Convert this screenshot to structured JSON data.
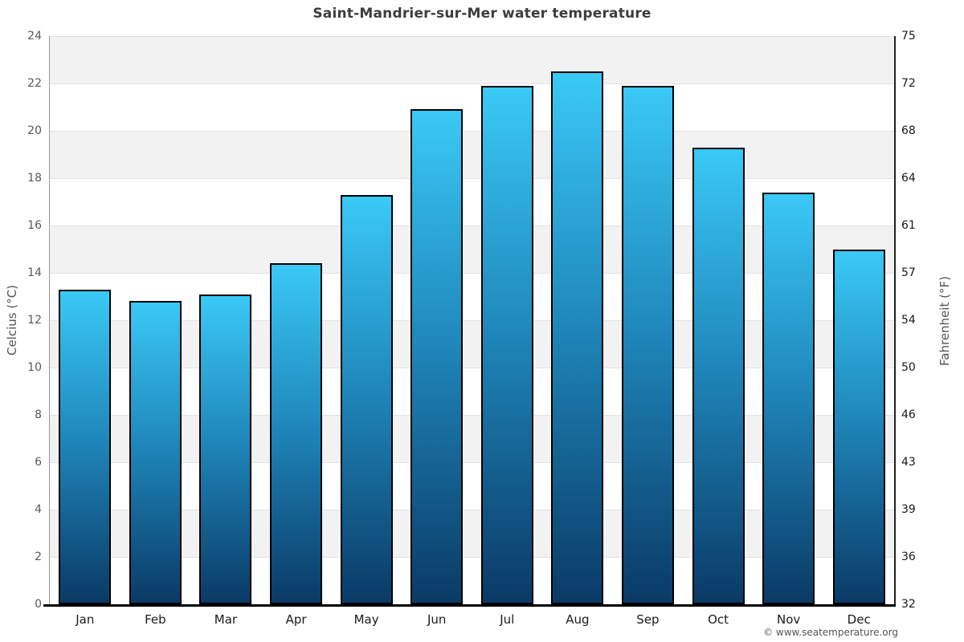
{
  "chart_data": {
    "type": "bar",
    "title": "Saint-Mandrier-sur-Mer water temperature",
    "categories": [
      "Jan",
      "Feb",
      "Mar",
      "Apr",
      "May",
      "Jun",
      "Jul",
      "Aug",
      "Sep",
      "Oct",
      "Nov",
      "Dec"
    ],
    "values": [
      13.3,
      12.8,
      13.1,
      14.4,
      17.3,
      20.9,
      21.9,
      22.5,
      21.9,
      19.3,
      17.4,
      15.0
    ],
    "xlabel": "",
    "ylabel": "Celcius (°C)",
    "ylabel_right": "Fahrenheit (°F)",
    "ylim": [
      0,
      24
    ],
    "ytick_step": 2,
    "yticks": [
      {
        "c": 24,
        "f": "75"
      },
      {
        "c": 22,
        "f": "72"
      },
      {
        "c": 20,
        "f": "68"
      },
      {
        "c": 18,
        "f": "64"
      },
      {
        "c": 16,
        "f": "61"
      },
      {
        "c": 14,
        "f": "57"
      },
      {
        "c": 12,
        "f": "54"
      },
      {
        "c": 10,
        "f": "50"
      },
      {
        "c": 8,
        "f": "46"
      },
      {
        "c": 6,
        "f": "43"
      },
      {
        "c": 4,
        "f": "39"
      },
      {
        "c": 2,
        "f": "36"
      },
      {
        "c": 0,
        "f": "32"
      }
    ],
    "grid": "horizontal gridlines every 2°C with alternating shaded bands",
    "legend": "none"
  },
  "footer": {
    "copyright": "© www.seatemperature.org"
  },
  "colors": {
    "bar_gradient_top": "#3ac9f6",
    "bar_gradient_mid": "#1f86ba",
    "bar_gradient_bottom": "#0a3a66",
    "bar_border": "#000000",
    "band_shaded": "#f2f2f2",
    "band_plain": "#ffffff",
    "gridline": "#e2e2e2",
    "left_axis_line": "#999999",
    "right_axis_line": "#222222",
    "bottom_axis_line": "#000000",
    "title_color": "#3d3d3d",
    "left_tick_color": "#595959",
    "right_tick_color": "#1a1a1a",
    "month_color": "#1a1a1a",
    "axis_title_color": "#555555",
    "copyright_color": "#555555"
  }
}
